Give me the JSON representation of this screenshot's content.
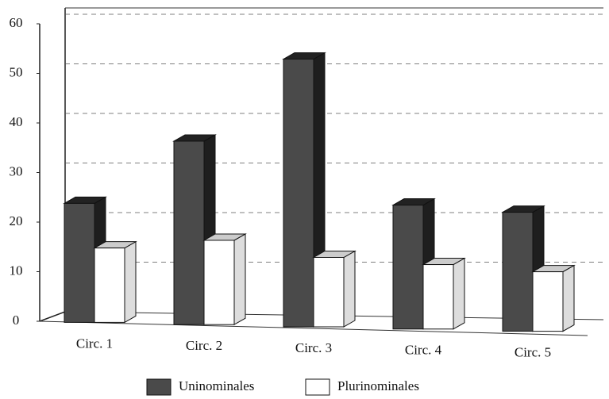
{
  "chart_data": {
    "type": "bar3d",
    "categories": [
      "Circ. 1",
      "Circ. 2",
      "Circ. 3",
      "Circ. 4",
      "Circ. 5"
    ],
    "series": [
      {
        "name": "Uninominales",
        "color": "#4a4a4a",
        "values": [
          24,
          37,
          54,
          25,
          24
        ]
      },
      {
        "name": "Plurinominales",
        "color": "#ffffff",
        "values": [
          15,
          17,
          14,
          13,
          12
        ]
      }
    ],
    "ylim": [
      0,
      60
    ],
    "yticks": [
      0,
      10,
      20,
      30,
      40,
      50,
      60
    ],
    "grid": true,
    "legend": "bottom"
  }
}
